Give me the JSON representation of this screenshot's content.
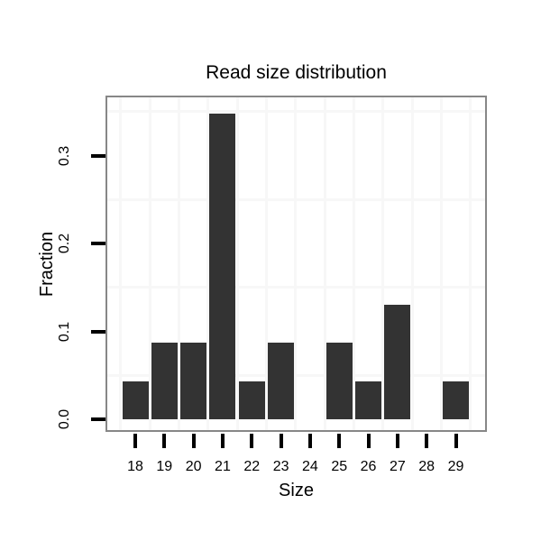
{
  "chart": {
    "title": "Read size distribution",
    "xlabel": "Size",
    "ylabel": "Fraction"
  },
  "chart_data": {
    "type": "bar",
    "title": "Read size distribution",
    "xlabel": "Size",
    "ylabel": "Fraction",
    "categories": [
      "18",
      "19",
      "20",
      "21",
      "22",
      "23",
      "24",
      "25",
      "26",
      "27",
      "28",
      "29"
    ],
    "values": [
      0.0435,
      0.087,
      0.087,
      0.3478,
      0.0435,
      0.087,
      0,
      0.087,
      0.0435,
      0.1304,
      0,
      0.0435
    ],
    "y_ticks": [
      "0.0",
      "0.1",
      "0.2",
      "0.3"
    ],
    "y_tick_values": [
      0,
      0.1,
      0.2,
      0.3
    ],
    "ylim": [
      -0.014,
      0.366
    ],
    "grid_minor_y": [
      0.05,
      0.15,
      0.25,
      0.35
    ],
    "grid": "faint vertical lines at category boundaries, faint horizontal lines midway between major ticks",
    "legend": "none",
    "colors": {
      "bar": "#333333",
      "panel_border": "#878787",
      "grid": "#f7f7f7",
      "tick": "#000000",
      "text": "#000000",
      "background": "#ffffff"
    }
  }
}
